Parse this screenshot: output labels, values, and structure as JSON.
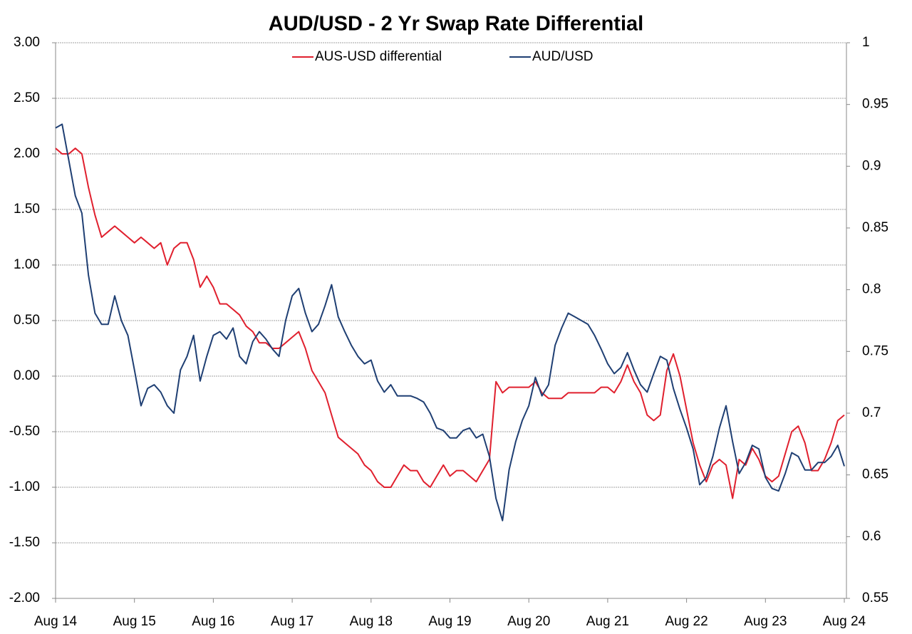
{
  "chart_data": {
    "type": "line",
    "title": "AUD/USD - 2 Yr Swap Rate Differential",
    "categories": [
      "Aug 14",
      null,
      null,
      null,
      null,
      null,
      null,
      null,
      null,
      null,
      null,
      null,
      "Aug 15",
      null,
      null,
      null,
      null,
      null,
      null,
      null,
      null,
      null,
      null,
      null,
      "Aug 16",
      null,
      null,
      null,
      null,
      null,
      null,
      null,
      null,
      null,
      null,
      null,
      "Aug 17",
      null,
      null,
      null,
      null,
      null,
      null,
      null,
      null,
      null,
      null,
      null,
      "Aug 18",
      null,
      null,
      null,
      null,
      null,
      null,
      null,
      null,
      null,
      null,
      null,
      "Aug 19",
      null,
      null,
      null,
      null,
      null,
      null,
      null,
      null,
      null,
      null,
      null,
      "Aug 20",
      null,
      null,
      null,
      null,
      null,
      null,
      null,
      null,
      null,
      null,
      null,
      "Aug 21",
      null,
      null,
      null,
      null,
      null,
      null,
      null,
      null,
      null,
      null,
      null,
      "Aug 22",
      null,
      null,
      null,
      null,
      null,
      null,
      null,
      null,
      null,
      null,
      null,
      "Aug 23",
      null,
      null,
      null,
      null,
      null,
      null,
      null,
      null,
      null,
      null,
      null,
      "Aug 24"
    ],
    "series": [
      {
        "name": "AUS-USD differential",
        "color": "#e0202e",
        "axis": "y",
        "values": [
          2.05,
          2.0,
          2.0,
          2.05,
          2.0,
          1.7,
          1.45,
          1.25,
          1.3,
          1.35,
          1.3,
          1.25,
          1.2,
          1.25,
          1.2,
          1.15,
          1.2,
          1.0,
          1.15,
          1.2,
          1.2,
          1.05,
          0.8,
          0.9,
          0.8,
          0.65,
          0.65,
          0.6,
          0.55,
          0.45,
          0.4,
          0.3,
          0.3,
          0.25,
          0.25,
          0.3,
          0.35,
          0.4,
          0.25,
          0.05,
          -0.05,
          -0.15,
          -0.35,
          -0.55,
          -0.6,
          -0.65,
          -0.7,
          -0.8,
          -0.85,
          -0.95,
          -1.0,
          -1.0,
          -0.9,
          -0.8,
          -0.85,
          -0.85,
          -0.95,
          -1.0,
          -0.9,
          -0.8,
          -0.9,
          -0.85,
          -0.85,
          -0.9,
          -0.95,
          -0.85,
          -0.75,
          -0.05,
          -0.15,
          -0.1,
          -0.1,
          -0.1,
          -0.1,
          -0.05,
          -0.15,
          -0.2,
          -0.2,
          -0.2,
          -0.15,
          -0.15,
          -0.15,
          -0.15,
          -0.15,
          -0.1,
          -0.1,
          -0.15,
          -0.05,
          0.1,
          -0.05,
          -0.15,
          -0.35,
          -0.4,
          -0.35,
          0.05,
          0.2,
          0.0,
          -0.3,
          -0.6,
          -0.8,
          -0.95,
          -0.8,
          -0.75,
          -0.8,
          -1.1,
          -0.75,
          -0.8,
          -0.65,
          -0.75,
          -0.9,
          -0.95,
          -0.9,
          -0.7,
          -0.5,
          -0.45,
          -0.6,
          -0.85,
          -0.85,
          -0.75,
          -0.6,
          -0.4,
          -0.35
        ]
      },
      {
        "name": "AUD/USD",
        "color": "#1f3f73",
        "axis": "y2",
        "values": [
          0.931,
          0.934,
          0.905,
          0.876,
          0.862,
          0.812,
          0.781,
          0.772,
          0.772,
          0.795,
          0.775,
          0.763,
          0.735,
          0.706,
          0.72,
          0.723,
          0.717,
          0.706,
          0.7,
          0.735,
          0.746,
          0.763,
          0.726,
          0.746,
          0.763,
          0.766,
          0.76,
          0.769,
          0.746,
          0.74,
          0.758,
          0.766,
          0.76,
          0.752,
          0.746,
          0.775,
          0.795,
          0.801,
          0.781,
          0.766,
          0.772,
          0.787,
          0.804,
          0.778,
          0.766,
          0.755,
          0.746,
          0.74,
          0.743,
          0.726,
          0.717,
          0.723,
          0.714,
          0.714,
          0.714,
          0.712,
          0.709,
          0.7,
          0.688,
          0.686,
          0.68,
          0.68,
          0.686,
          0.688,
          0.68,
          0.683,
          0.665,
          0.631,
          0.613,
          0.654,
          0.677,
          0.694,
          0.706,
          0.729,
          0.714,
          0.723,
          0.755,
          0.769,
          0.781,
          0.778,
          0.775,
          0.772,
          0.763,
          0.752,
          0.74,
          0.732,
          0.737,
          0.749,
          0.735,
          0.723,
          0.717,
          0.732,
          0.746,
          0.743,
          0.72,
          0.703,
          0.688,
          0.671,
          0.642,
          0.648,
          0.665,
          0.688,
          0.706,
          0.677,
          0.651,
          0.66,
          0.674,
          0.671,
          0.648,
          0.639,
          0.637,
          0.651,
          0.668,
          0.665,
          0.654,
          0.654,
          0.66,
          0.66,
          0.665,
          0.674,
          0.657
        ]
      }
    ],
    "ylim": [
      -2,
      3
    ],
    "yticks": [
      {
        "value": -2,
        "label": "-2.00"
      },
      {
        "value": -1.5,
        "label": "-1.50"
      },
      {
        "value": -1,
        "label": "-1.00"
      },
      {
        "value": -0.5,
        "label": "-0.50"
      },
      {
        "value": 0,
        "label": "0.00"
      },
      {
        "value": 0.5,
        "label": "0.50"
      },
      {
        "value": 1,
        "label": "1.00"
      },
      {
        "value": 1.5,
        "label": "1.50"
      },
      {
        "value": 2,
        "label": "2.00"
      },
      {
        "value": 2.5,
        "label": "2.50"
      },
      {
        "value": 3,
        "label": "3.00"
      }
    ],
    "y2lim": [
      0.55,
      1
    ],
    "y2ticks": [
      0.55,
      0.6,
      0.65,
      0.7,
      0.75,
      0.8,
      0.85,
      0.9,
      0.95,
      1
    ],
    "grid": true,
    "legend": "top"
  }
}
